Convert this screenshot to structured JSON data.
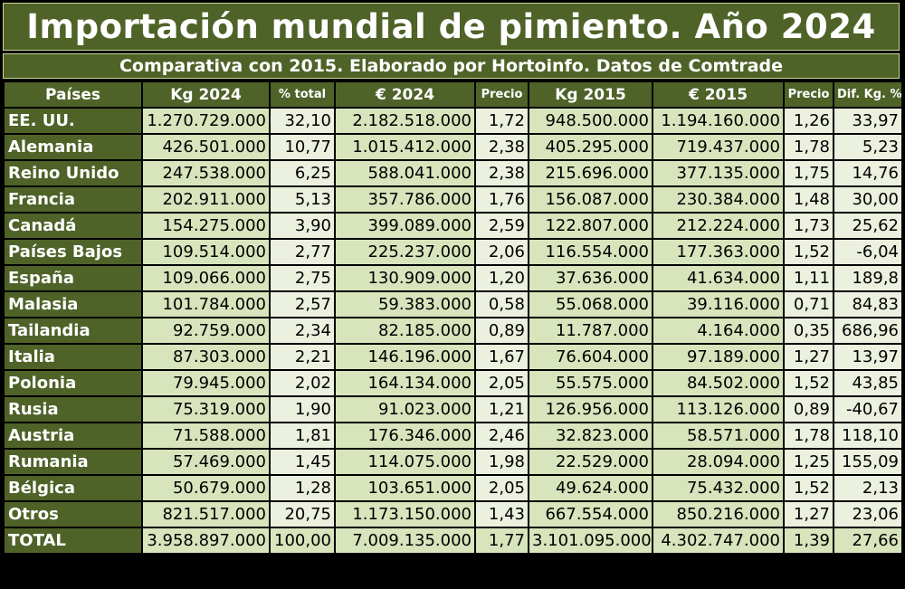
{
  "title": "Importación mundial de pimiento. Año 2024",
  "subtitle": "Comparativa con 2015. Elaborado por Hortoinfo. Datos de Comtrade",
  "headers": [
    "Países",
    "Kg 2024",
    "% total",
    "€ 2024",
    "Precio",
    "Kg 2015",
    "€ 2015",
    "Precio",
    "Dif. Kg. %"
  ],
  "rows": [
    [
      "EE. UU.",
      "1.270.729.000",
      "32,10",
      "2.182.518.000",
      "1,72",
      "948.500.000",
      "1.194.160.000",
      "1,26",
      "33,97"
    ],
    [
      "Alemania",
      "426.501.000",
      "10,77",
      "1.015.412.000",
      "2,38",
      "405.295.000",
      "719.437.000",
      "1,78",
      "5,23"
    ],
    [
      "Reino Unido",
      "247.538.000",
      "6,25",
      "588.041.000",
      "2,38",
      "215.696.000",
      "377.135.000",
      "1,75",
      "14,76"
    ],
    [
      "Francia",
      "202.911.000",
      "5,13",
      "357.786.000",
      "1,76",
      "156.087.000",
      "230.384.000",
      "1,48",
      "30,00"
    ],
    [
      "Canadá",
      "154.275.000",
      "3,90",
      "399.089.000",
      "2,59",
      "122.807.000",
      "212.224.000",
      "1,73",
      "25,62"
    ],
    [
      "Países Bajos",
      "109.514.000",
      "2,77",
      "225.237.000",
      "2,06",
      "116.554.000",
      "177.363.000",
      "1,52",
      "-6,04"
    ],
    [
      "España",
      "109.066.000",
      "2,75",
      "130.909.000",
      "1,20",
      "37.636.000",
      "41.634.000",
      "1,11",
      "189,8"
    ],
    [
      "Malasia",
      "101.784.000",
      "2,57",
      "59.383.000",
      "0,58",
      "55.068.000",
      "39.116.000",
      "0,71",
      "84,83"
    ],
    [
      "Tailandia",
      "92.759.000",
      "2,34",
      "82.185.000",
      "0,89",
      "11.787.000",
      "4.164.000",
      "0,35",
      "686,96"
    ],
    [
      "Italia",
      "87.303.000",
      "2,21",
      "146.196.000",
      "1,67",
      "76.604.000",
      "97.189.000",
      "1,27",
      "13,97"
    ],
    [
      "Polonia",
      "79.945.000",
      "2,02",
      "164.134.000",
      "2,05",
      "55.575.000",
      "84.502.000",
      "1,52",
      "43,85"
    ],
    [
      "Rusia",
      "75.319.000",
      "1,90",
      "91.023.000",
      "1,21",
      "126.956.000",
      "113.126.000",
      "0,89",
      "-40,67"
    ],
    [
      "Austria",
      "71.588.000",
      "1,81",
      "176.346.000",
      "2,46",
      "32.823.000",
      "58.571.000",
      "1,78",
      "118,10"
    ],
    [
      "Rumania",
      "57.469.000",
      "1,45",
      "114.075.000",
      "1,98",
      "22.529.000",
      "28.094.000",
      "1,25",
      "155,09"
    ],
    [
      "Bélgica",
      "50.679.000",
      "1,28",
      "103.651.000",
      "2,05",
      "49.624.000",
      "75.432.000",
      "1,52",
      "2,13"
    ],
    [
      "Otros",
      "821.517.000",
      "20,75",
      "1.173.150.000",
      "1,43",
      "667.554.000",
      "850.216.000",
      "1,27",
      "23,06"
    ],
    [
      "TOTAL",
      "3.958.897.000",
      "100,00",
      "7.009.135.000",
      "1,77",
      "3.101.095.000",
      "4.302.747.000",
      "1,39",
      "27,66"
    ]
  ],
  "colors": {
    "header_bg": "#4f6228",
    "header_text": "#ffffff",
    "cell_bg": "#d8e4bc",
    "cell_alt_bg": "#ebf1de",
    "page_bg": "#000000"
  }
}
